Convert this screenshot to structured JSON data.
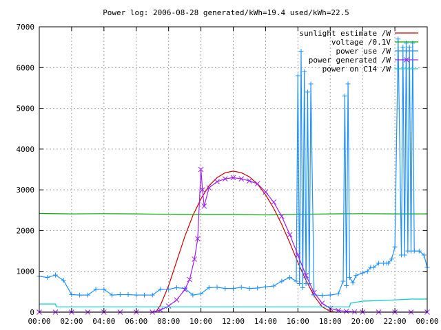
{
  "chart_data": {
    "type": "line",
    "title": "Power log: 2006-08-28 generated/kWh=19.4 used/kWh=22.5",
    "xlabel": "",
    "ylabel": "",
    "xlim": [
      0,
      24
    ],
    "ylim": [
      0,
      7000
    ],
    "x_ticks": [
      0,
      2,
      4,
      6,
      8,
      10,
      12,
      14,
      16,
      18,
      20,
      22,
      24
    ],
    "x_tick_labels": [
      "00:00",
      "02:00",
      "04:00",
      "06:00",
      "08:00",
      "10:00",
      "12:00",
      "14:00",
      "16:00",
      "18:00",
      "20:00",
      "22:00",
      "00:00"
    ],
    "y_ticks": [
      0,
      1000,
      2000,
      3000,
      4000,
      5000,
      6000,
      7000
    ],
    "y_tick_labels": [
      "0",
      "1000",
      "2000",
      "3000",
      "4000",
      "5000",
      "6000",
      "7000"
    ],
    "grid": true,
    "legend_position": "top-right",
    "series": [
      {
        "name": "sunlight estimate /W",
        "color": "#cc0000",
        "marker": "none",
        "x": [
          7.2,
          7.5,
          8,
          8.5,
          9,
          9.5,
          10,
          10.5,
          11,
          11.5,
          12,
          12.5,
          13,
          13.5,
          14,
          14.5,
          15,
          15.5,
          16,
          16.5,
          17,
          17.5,
          18,
          18.3
        ],
        "y": [
          0,
          170,
          650,
          1250,
          1850,
          2370,
          2780,
          3100,
          3300,
          3420,
          3460,
          3420,
          3320,
          3140,
          2880,
          2550,
          2150,
          1700,
          1220,
          780,
          400,
          130,
          20,
          0
        ]
      },
      {
        "name": "voltage /0.1V",
        "color": "#00aa00",
        "marker": "none",
        "x": [
          0,
          2,
          4,
          6,
          8,
          10,
          12,
          14,
          16,
          18,
          20,
          22,
          24
        ],
        "y": [
          2420,
          2410,
          2415,
          2410,
          2400,
          2395,
          2395,
          2385,
          2400,
          2410,
          2415,
          2410,
          2410
        ]
      },
      {
        "name": "power use /W",
        "color": "#1e90ff",
        "marker": "plus",
        "x": [
          0,
          0.5,
          1,
          1.5,
          2,
          2.5,
          3,
          3.5,
          4,
          4.5,
          5,
          5.5,
          6,
          6.5,
          7,
          7.5,
          8,
          8.5,
          9,
          9.5,
          10,
          10.5,
          11,
          11.5,
          12,
          12.5,
          13,
          13.5,
          14,
          14.5,
          15,
          15.5,
          15.9,
          16,
          16.1,
          16.2,
          16.3,
          16.4,
          16.5,
          16.6,
          16.7,
          16.8,
          17,
          17.5,
          18,
          18.5,
          18.8,
          18.9,
          19.0,
          19.1,
          19.2,
          19.4,
          19.6,
          20,
          20.3,
          20.5,
          20.7,
          21,
          21.3,
          21.5,
          21.6,
          21.8,
          22,
          22.2,
          22.4,
          22.5,
          22.6,
          22.7,
          22.8,
          22.9,
          23.0,
          23.1,
          23.2,
          23.5,
          23.8,
          24
        ],
        "y": [
          880,
          850,
          910,
          780,
          430,
          420,
          420,
          560,
          560,
          420,
          430,
          430,
          420,
          420,
          420,
          560,
          560,
          600,
          580,
          420,
          450,
          600,
          610,
          580,
          580,
          610,
          580,
          590,
          620,
          640,
          760,
          850,
          760,
          5800,
          700,
          6400,
          600,
          5900,
          700,
          5400,
          700,
          5600,
          420,
          410,
          420,
          450,
          760,
          5300,
          650,
          5600,
          850,
          720,
          900,
          960,
          1000,
          1100,
          1100,
          1200,
          1200,
          1200,
          1200,
          1300,
          1600,
          6700,
          1400,
          6500,
          1400,
          6600,
          1500,
          6500,
          1500,
          6600,
          1500,
          1500,
          1400,
          1100
        ]
      },
      {
        "name": "power generated /W",
        "color": "#a020f0",
        "marker": "cross",
        "x": [
          0,
          1,
          2,
          3,
          4,
          5,
          6,
          7,
          7.5,
          8,
          8.5,
          9,
          9.3,
          9.6,
          9.8,
          10,
          10.1,
          10.2,
          10.5,
          11,
          11.5,
          12,
          12.5,
          13,
          13.5,
          14,
          14.5,
          15,
          15.5,
          16,
          16.5,
          17,
          17.5,
          18,
          18.5,
          19,
          19.5,
          20,
          21,
          22,
          23,
          24
        ],
        "y": [
          0,
          0,
          0,
          0,
          0,
          0,
          0,
          0,
          50,
          150,
          300,
          550,
          800,
          1300,
          1800,
          3500,
          3000,
          2600,
          3050,
          3200,
          3270,
          3300,
          3270,
          3220,
          3150,
          2950,
          2700,
          2350,
          1900,
          1400,
          900,
          480,
          220,
          90,
          40,
          20,
          5,
          0,
          0,
          0,
          0,
          0
        ]
      },
      {
        "name": "power on C14 /W",
        "color": "#00cccc",
        "marker": "none",
        "x": [
          0,
          1,
          1.05,
          3,
          6,
          8,
          10,
          12,
          14,
          16,
          18,
          19.2,
          19.25,
          20,
          21,
          22,
          23,
          24
        ],
        "y": [
          200,
          200,
          130,
          130,
          130,
          130,
          130,
          130,
          130,
          130,
          130,
          130,
          220,
          270,
          280,
          300,
          320,
          320
        ]
      }
    ]
  }
}
